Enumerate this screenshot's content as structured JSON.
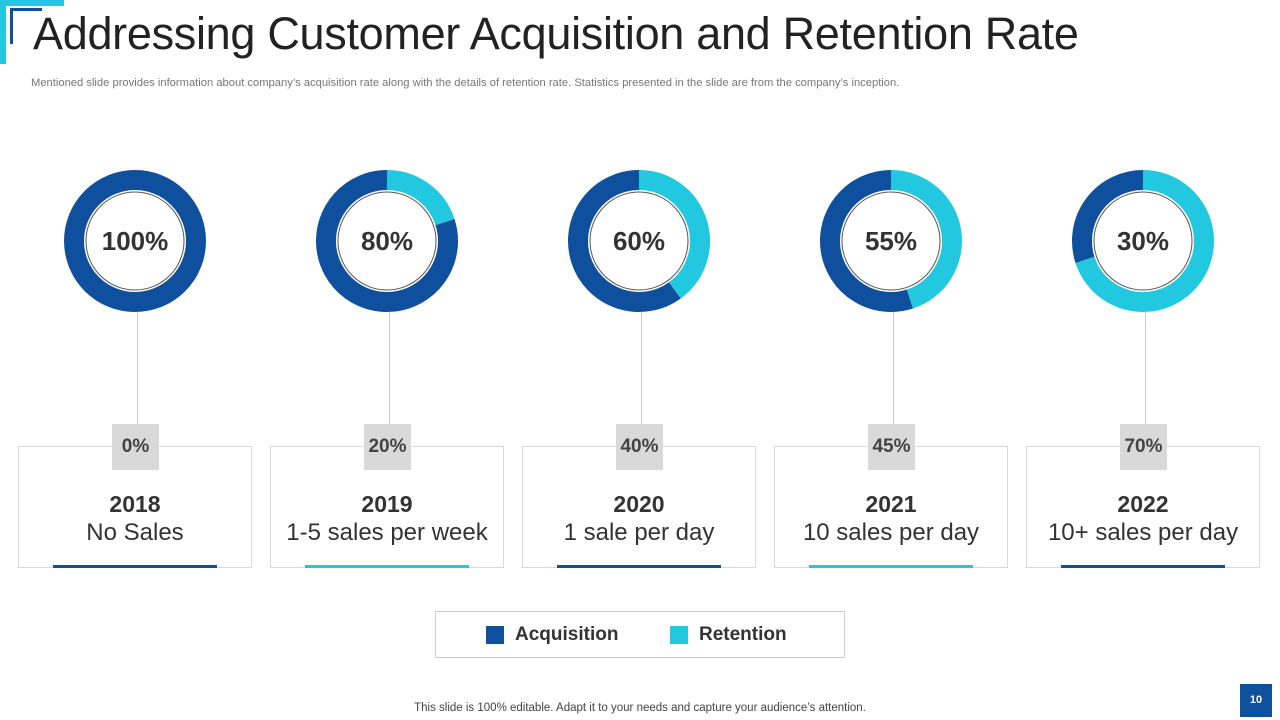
{
  "title": "Addressing Customer Acquisition and Retention Rate",
  "subtitle": "Mentioned slide provides information about company’s acquisition rate along with the details of retention rate.  Statistics presented in the slide are from the company’s inception.",
  "colors": {
    "acquisition": "#0e4f9e",
    "retention": "#22c7e0",
    "accent": "#22c7e0"
  },
  "legend": {
    "acquisition": "Acquisition",
    "retention": "Retention"
  },
  "chart_data": {
    "type": "pie",
    "variant": "donut",
    "series_names": [
      "Acquisition",
      "Retention"
    ],
    "items": [
      {
        "year": "2018",
        "detail": "No Sales",
        "acquisition": 100,
        "retention": 0,
        "acquisition_label": "100%",
        "retention_label": "0%"
      },
      {
        "year": "2019",
        "detail": "1-5 sales per week",
        "acquisition": 80,
        "retention": 20,
        "acquisition_label": "80%",
        "retention_label": "20%"
      },
      {
        "year": "2020",
        "detail": "1 sale per day",
        "acquisition": 60,
        "retention": 40,
        "acquisition_label": "60%",
        "retention_label": "40%"
      },
      {
        "year": "2021",
        "detail": "10 sales per day",
        "acquisition": 55,
        "retention": 45,
        "acquisition_label": "55%",
        "retention_label": "45%"
      },
      {
        "year": "2022",
        "detail": "10+ sales per day",
        "acquisition": 30,
        "retention": 70,
        "acquisition_label": "30%",
        "retention_label": "70%"
      }
    ]
  },
  "footer": "This slide is 100% editable. Adapt it to your needs and capture your audience’s attention.",
  "page_number": "10"
}
